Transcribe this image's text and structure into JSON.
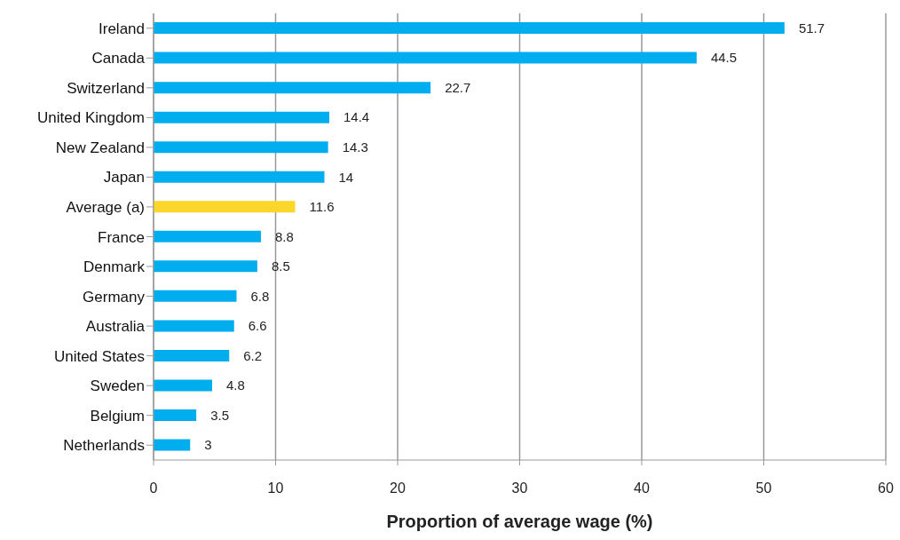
{
  "chart_data": {
    "type": "bar",
    "orientation": "horizontal",
    "xlabel": "Proportion of average wage (%)",
    "categories": [
      "Ireland",
      "Canada",
      "Switzerland",
      "United Kingdom",
      "New Zealand",
      "Japan",
      "Average (a)",
      "France",
      "Denmark",
      "Germany",
      "Australia",
      "United States",
      "Sweden",
      "Belgium",
      "Netherlands"
    ],
    "values": [
      51.7,
      44.5,
      22.7,
      14.4,
      14.3,
      14,
      11.6,
      8.8,
      8.5,
      6.8,
      6.6,
      6.2,
      4.8,
      3.5,
      3
    ],
    "colors": [
      "#00aeef",
      "#00aeef",
      "#00aeef",
      "#00aeef",
      "#00aeef",
      "#00aeef",
      "#fcd62b",
      "#00aeef",
      "#00aeef",
      "#00aeef",
      "#00aeef",
      "#00aeef",
      "#00aeef",
      "#00aeef",
      "#00aeef"
    ],
    "xlim": [
      0,
      60
    ],
    "xticks": [
      0,
      10,
      20,
      30,
      40,
      50,
      60
    ],
    "grid": "x",
    "data_labels": true
  }
}
